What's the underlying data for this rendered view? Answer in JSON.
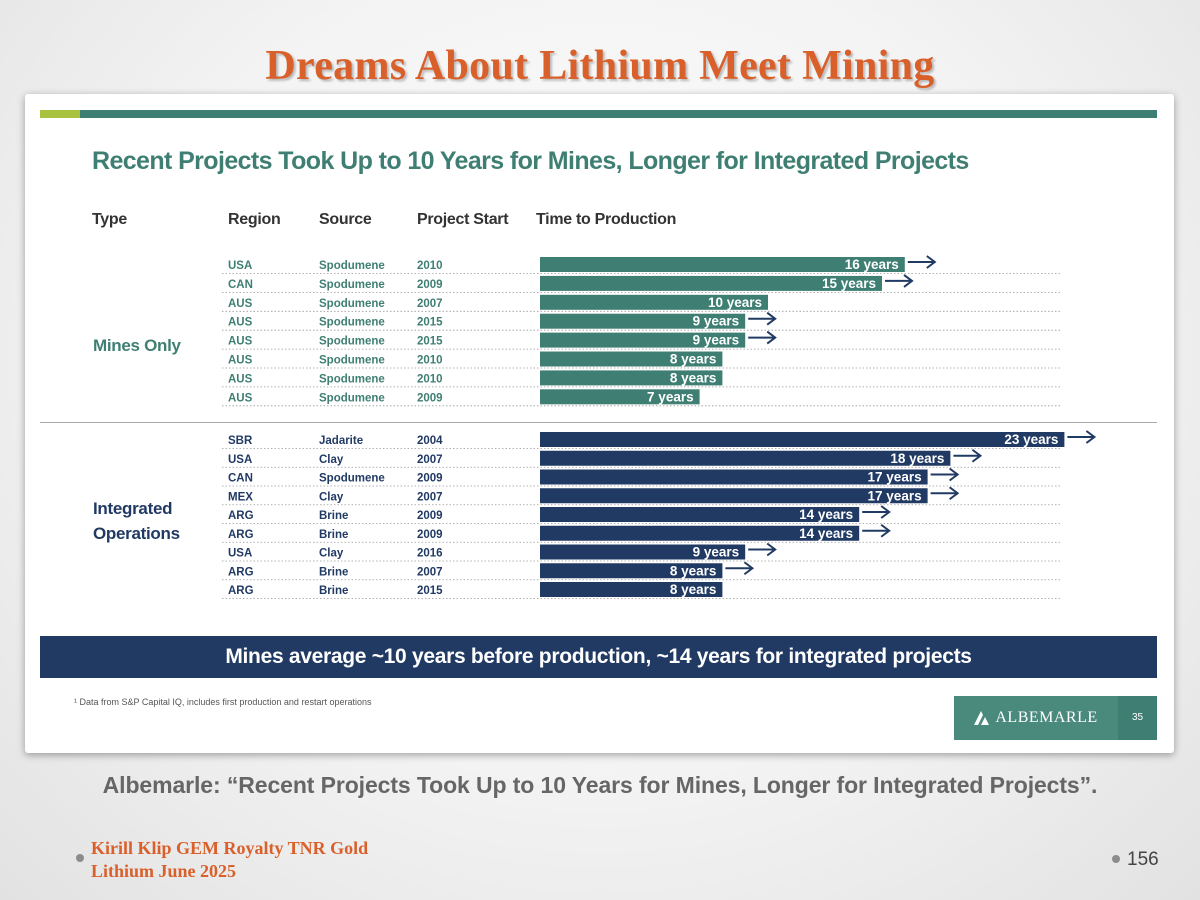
{
  "slide_title": "Dreams About Lithium Meet Mining",
  "inner": {
    "headline": "Recent Projects Took Up to 10 Years for Mines, Longer for Integrated Projects",
    "column_headers": {
      "type": "Type",
      "region": "Region",
      "source": "Source",
      "project_start": "Project Start",
      "time_to_production": "Time to Production"
    },
    "groups": {
      "mines_line1": "Mines Only",
      "integrated_line1": "Integrated",
      "integrated_line2": "Operations"
    },
    "summary": "Mines average ~10 years before production, ~14 years for integrated projects",
    "footnote": "¹ Data from S&P Capital IQ, includes first production and restart operations",
    "logo_text": "ALBEMARLE",
    "logo_page": "35"
  },
  "chart_data": {
    "type": "bar",
    "orientation": "horizontal",
    "value_suffix": " years",
    "colors": {
      "mines": "#3f7f73",
      "integrated": "#213a64",
      "arrow": "#213a64"
    },
    "rows": [
      {
        "group": "Mines Only",
        "region": "USA",
        "source": "Spodumene",
        "start": "2010",
        "years": 16,
        "arrow": true
      },
      {
        "group": "Mines Only",
        "region": "CAN",
        "source": "Spodumene",
        "start": "2009",
        "years": 15,
        "arrow": true
      },
      {
        "group": "Mines Only",
        "region": "AUS",
        "source": "Spodumene",
        "start": "2007",
        "years": 10,
        "arrow": false
      },
      {
        "group": "Mines Only",
        "region": "AUS",
        "source": "Spodumene",
        "start": "2015",
        "years": 9,
        "arrow": true
      },
      {
        "group": "Mines Only",
        "region": "AUS",
        "source": "Spodumene",
        "start": "2015",
        "years": 9,
        "arrow": true
      },
      {
        "group": "Mines Only",
        "region": "AUS",
        "source": "Spodumene",
        "start": "2010",
        "years": 8,
        "arrow": false
      },
      {
        "group": "Mines Only",
        "region": "AUS",
        "source": "Spodumene",
        "start": "2010",
        "years": 8,
        "arrow": false
      },
      {
        "group": "Mines Only",
        "region": "AUS",
        "source": "Spodumene",
        "start": "2009",
        "years": 7,
        "arrow": false
      },
      {
        "group": "Integrated Operations",
        "region": "SBR",
        "source": "Jadarite",
        "start": "2004",
        "years": 23,
        "arrow": true
      },
      {
        "group": "Integrated Operations",
        "region": "USA",
        "source": "Clay",
        "start": "2007",
        "years": 18,
        "arrow": true
      },
      {
        "group": "Integrated Operations",
        "region": "CAN",
        "source": "Spodumene",
        "start": "2009",
        "years": 17,
        "arrow": true
      },
      {
        "group": "Integrated Operations",
        "region": "MEX",
        "source": "Clay",
        "start": "2007",
        "years": 17,
        "arrow": true
      },
      {
        "group": "Integrated Operations",
        "region": "ARG",
        "source": "Brine",
        "start": "2009",
        "years": 14,
        "arrow": true
      },
      {
        "group": "Integrated Operations",
        "region": "ARG",
        "source": "Brine",
        "start": "2009",
        "years": 14,
        "arrow": true
      },
      {
        "group": "Integrated Operations",
        "region": "USA",
        "source": "Clay",
        "start": "2016",
        "years": 9,
        "arrow": true
      },
      {
        "group": "Integrated Operations",
        "region": "ARG",
        "source": "Brine",
        "start": "2007",
        "years": 8,
        "arrow": true
      },
      {
        "group": "Integrated Operations",
        "region": "ARG",
        "source": "Brine",
        "start": "2015",
        "years": 8,
        "arrow": false
      }
    ]
  },
  "caption": "Albemarle: “Recent Projects Took Up to 10 Years for Mines, Longer for Integrated Projects”.",
  "footer": {
    "line1": "Kirill Klip GEM Royalty TNR Gold",
    "line2": "Lithium June 2025",
    "page_number": "156"
  }
}
